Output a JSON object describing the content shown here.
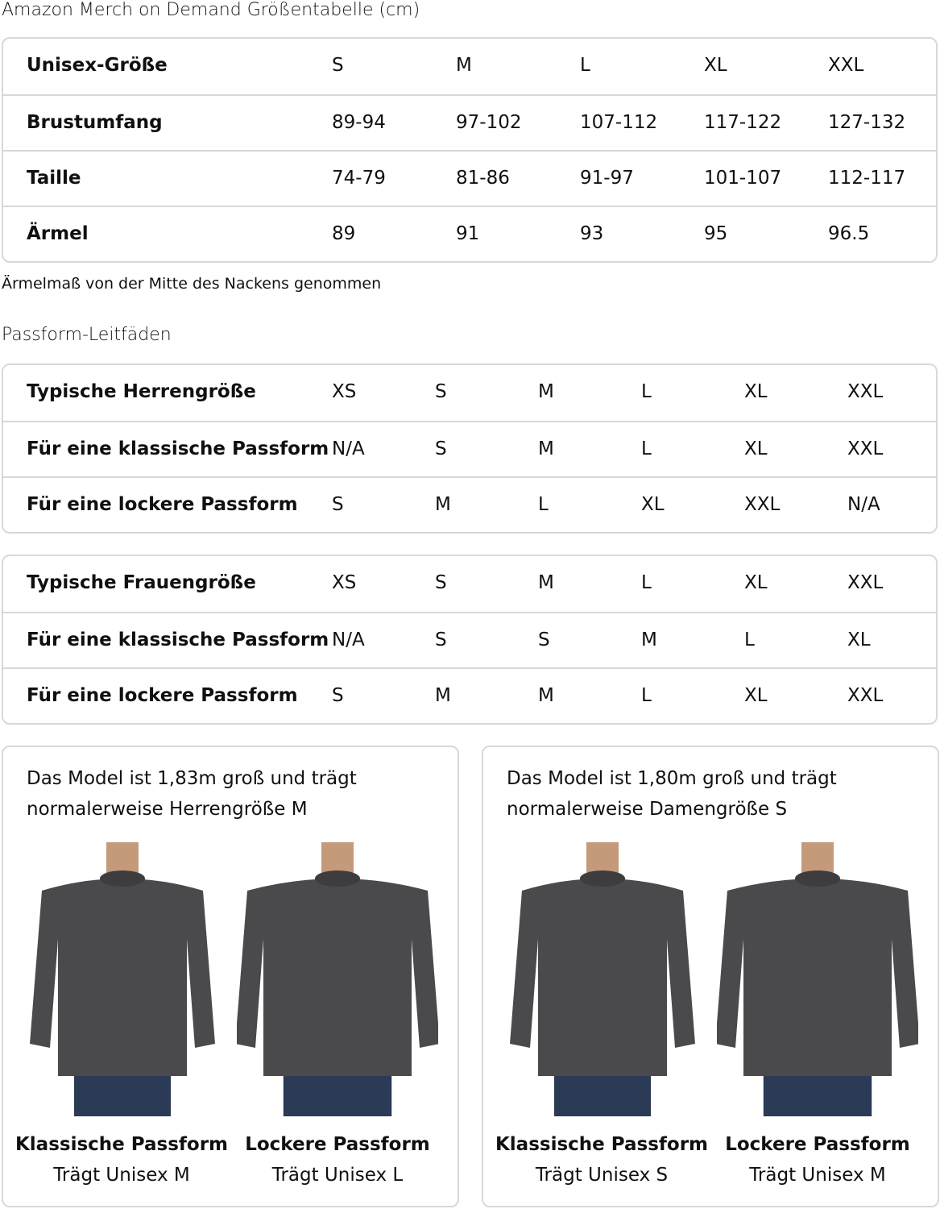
{
  "title": "Amazon Merch on Demand Größentabelle (cm)",
  "unisex": {
    "rows": [
      {
        "label": "Unisex-Größe",
        "values": [
          "S",
          "M",
          "L",
          "XL",
          "XXL"
        ]
      },
      {
        "label": "Brustumfang",
        "values": [
          "89-94",
          "97-102",
          "107-112",
          "117-122",
          "127-132"
        ]
      },
      {
        "label": "Taille",
        "values": [
          "74-79",
          "81-86",
          "91-97",
          "101-107",
          "112-117"
        ]
      },
      {
        "label": "Ärmel",
        "values": [
          "89",
          "91",
          "93",
          "95",
          "96.5"
        ]
      }
    ]
  },
  "note": "Ärmelmaß von der Mitte des Nackens genommen",
  "fit_title": "Passform-Leitfäden",
  "men": {
    "rows": [
      {
        "label": "Typische Herrengröße",
        "values": [
          "XS",
          "S",
          "M",
          "L",
          "XL",
          "XXL"
        ]
      },
      {
        "label": "Für eine klassische Passform",
        "values": [
          "N/A",
          "S",
          "M",
          "L",
          "XL",
          "XXL"
        ]
      },
      {
        "label": "Für eine lockere Passform",
        "values": [
          "S",
          "M",
          "L",
          "XL",
          "XXL",
          "N/A"
        ]
      }
    ]
  },
  "women": {
    "rows": [
      {
        "label": "Typische Frauengröße",
        "values": [
          "XS",
          "S",
          "M",
          "L",
          "XL",
          "XXL"
        ]
      },
      {
        "label": "Für eine klassische Passform",
        "values": [
          "N/A",
          "S",
          "S",
          "M",
          "L",
          "XL"
        ]
      },
      {
        "label": "Für eine lockere Passform",
        "values": [
          "S",
          "M",
          "M",
          "L",
          "XL",
          "XXL"
        ]
      }
    ]
  },
  "cards": [
    {
      "caption": "Das Model ist 1,83m groß und trägt normalerweise Herrengröße M",
      "figs": [
        {
          "title": "Klassische Passform",
          "sub": "Trägt Unisex M"
        },
        {
          "title": "Lockere Passform",
          "sub": "Trägt Unisex L"
        }
      ]
    },
    {
      "caption": "Das Model ist 1,80m groß und trägt normalerweise Damengröße S",
      "figs": [
        {
          "title": "Klassische Passform",
          "sub": "Trägt Unisex S"
        },
        {
          "title": "Lockere Passform",
          "sub": "Trägt Unisex M"
        }
      ]
    }
  ],
  "colors": {
    "border": "#d5d9d9",
    "sweatshirt": "#4a4a4c",
    "jeans": "#2b3a55"
  }
}
